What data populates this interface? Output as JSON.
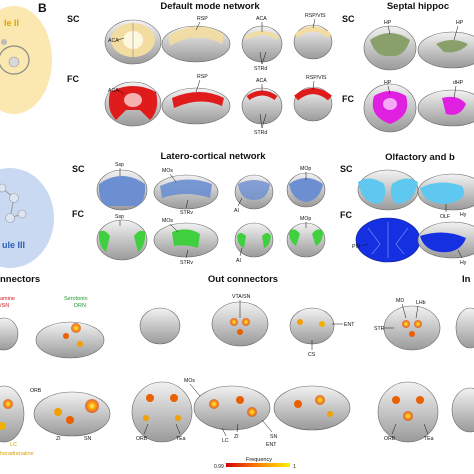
{
  "panel_letter": "B",
  "row_sc": "SC",
  "row_fc": "FC",
  "left": {
    "module2": "le II",
    "module3": "ule III",
    "connectors": "nnectors",
    "in_labels": [
      "amine",
      "/SN",
      "Serotonin",
      "DRN",
      "LC",
      "horadrenaline"
    ]
  },
  "dmn": {
    "title": "Default mode network",
    "sc_labels": [
      "ACA",
      "RSP",
      "ACA",
      "RSP/VIS",
      "STRd"
    ],
    "fc_labels": [
      "ACA",
      "RSP",
      "ACA",
      "RSP/VIS",
      "STRd"
    ]
  },
  "septal": {
    "title": "Septal hippoc",
    "sc_labels": [
      "HP",
      "HP"
    ],
    "fc_labels": [
      "HP",
      "dHP"
    ]
  },
  "latero": {
    "title": "Latero-cortical network",
    "sc_labels": [
      "Ssp",
      "MOs",
      "STRv",
      "AI",
      "MOp"
    ],
    "fc_labels": [
      "Ssp",
      "MOs",
      "STRv",
      "AI",
      "MOp"
    ]
  },
  "olfactory": {
    "title": "Olfactory and b",
    "sc_labels": [
      "OLF",
      "Hy"
    ],
    "fc_labels": [
      "PIR",
      "Hy"
    ]
  },
  "out": {
    "title": "Out connectors",
    "labels": [
      "VTA/SN",
      "ENT",
      "CS",
      "MOs",
      "ORB",
      "TEa",
      "ZI",
      "SN",
      "LC",
      "ENT"
    ]
  },
  "in_connectors": {
    "title": "In",
    "labels": [
      "MD",
      "LHb",
      "STR",
      "ORB",
      "TEa"
    ]
  },
  "left_bottom_labels": [
    "ORB",
    "ZI",
    "SN"
  ],
  "colorbar": {
    "title": "Frequency",
    "min_label": "0.99",
    "max_label": "1"
  },
  "colors": {
    "dmn_sc": "#f3dca0",
    "dmn_fc": "#e01b1b",
    "septal_sc": "#8aa06a",
    "septal_fc": "#e020e0",
    "latero_sc": "#6b8fd0",
    "latero_fc": "#3fcf3f",
    "olf_sc": "#5ec8f0",
    "olf_fc": "#1530e0",
    "module2": "#fbe7b0",
    "module3": "#c9d9f2",
    "module2_text": "#e0a400",
    "module3_text": "#2b5fb5",
    "serotonin": "#1e9a2a",
    "dopamine": "#d42020",
    "noradrenaline": "#d9a000"
  }
}
